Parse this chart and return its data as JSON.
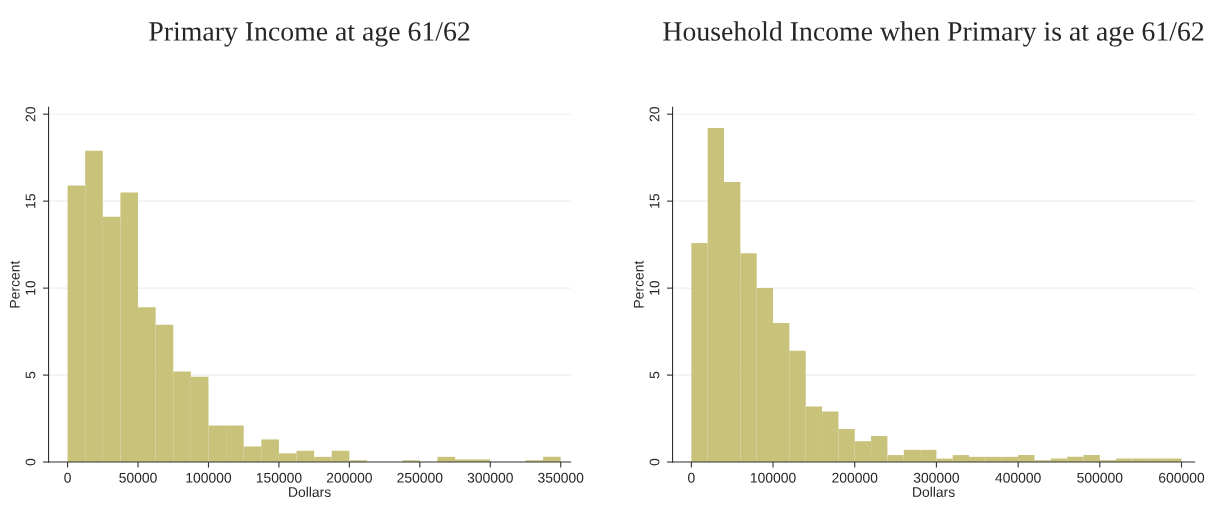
{
  "chart_data": [
    {
      "type": "histogram",
      "title": "Primary Income at age 61/62",
      "xlabel": "Dollars",
      "ylabel": "Percent",
      "color": "#c8c27a",
      "grid": "y",
      "bins": [
        0,
        12500,
        25000,
        37500,
        50000,
        62500,
        75000,
        87500,
        100000,
        112500,
        125000,
        137500,
        150000,
        162500,
        175000,
        187500,
        200000,
        212500,
        225000,
        237500,
        250000,
        262500,
        275000,
        287500,
        300000,
        312500,
        325000,
        337500,
        350000
      ],
      "values": [
        15.9,
        17.9,
        14.1,
        15.5,
        8.9,
        7.9,
        5.2,
        4.9,
        2.1,
        2.1,
        0.9,
        1.3,
        0.5,
        0.65,
        0.3,
        0.65,
        0.1,
        0,
        0,
        0.1,
        0,
        0.3,
        0.15,
        0.15,
        0,
        0,
        0.1,
        0.3
      ],
      "xlim": [
        -13500,
        357000
      ],
      "xticks": [
        0,
        50000,
        100000,
        150000,
        200000,
        250000,
        300000,
        350000
      ],
      "ylim": [
        0,
        20.4
      ],
      "yticks": [
        0,
        5,
        10,
        15,
        20
      ]
    },
    {
      "type": "histogram",
      "title": "Household Income when Primary is at age 61/62",
      "xlabel": "Dollars",
      "ylabel": "Percent",
      "color": "#c8c27a",
      "grid": "y",
      "bins": [
        0,
        20000,
        40000,
        60000,
        80000,
        100000,
        120000,
        140000,
        160000,
        180000,
        200000,
        220000,
        240000,
        260000,
        280000,
        300000,
        320000,
        340000,
        360000,
        380000,
        400000,
        420000,
        440000,
        460000,
        480000,
        500000,
        520000,
        540000,
        560000,
        580000,
        600000
      ],
      "values": [
        12.6,
        19.2,
        16.1,
        12.0,
        10.0,
        8.0,
        6.4,
        3.2,
        2.9,
        1.9,
        1.2,
        1.5,
        0.4,
        0.7,
        0.7,
        0.2,
        0.4,
        0.3,
        0.3,
        0.3,
        0.4,
        0.1,
        0.2,
        0.3,
        0.4,
        0.1,
        0.2,
        0.2,
        0.2,
        0.2
      ],
      "xlim": [
        -23000,
        616000
      ],
      "xticks": [
        0,
        100000,
        200000,
        300000,
        400000,
        500000,
        600000
      ],
      "ylim": [
        0,
        20.4
      ],
      "yticks": [
        0,
        5,
        10,
        15,
        20
      ]
    }
  ]
}
